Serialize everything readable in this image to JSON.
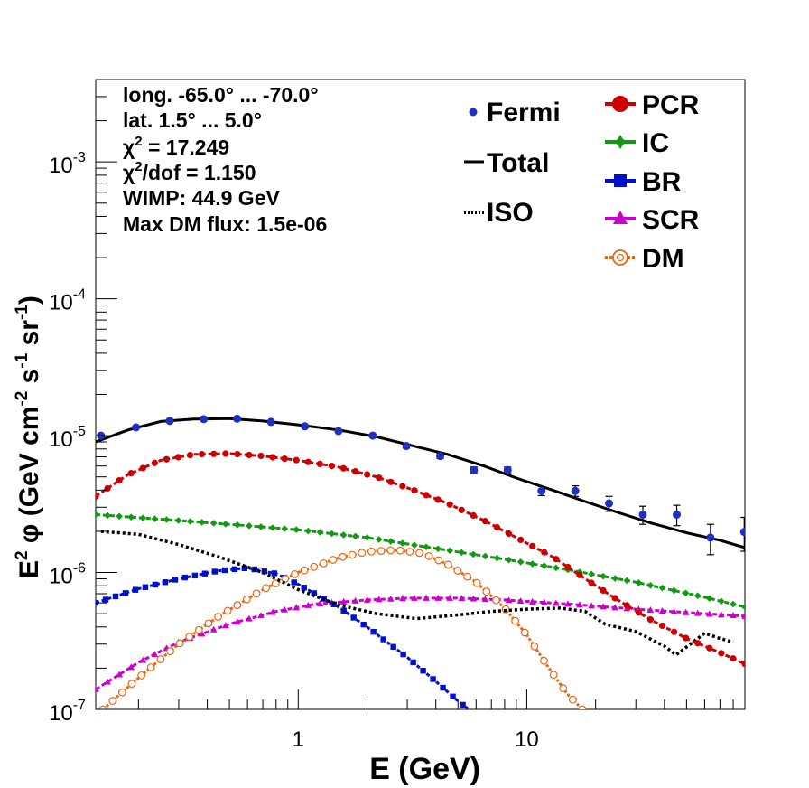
{
  "chart_data": {
    "type": "scatter",
    "xscale": "log",
    "yscale": "log",
    "xlim": [
      0.13,
      90
    ],
    "ylim": [
      1e-07,
      0.004
    ],
    "xlabel": "E (GeV)",
    "ylabel_parts": {
      "base": "E",
      "sup1": "2",
      "phi": " φ (GeV cm",
      "sup2": "-2",
      "mid": " s",
      "sup3": "-1",
      "end": " sr",
      "sup4": "-1",
      "close": ")"
    },
    "xticks": [
      {
        "value": 1,
        "label": "1"
      },
      {
        "value": 10,
        "label": "10"
      }
    ],
    "yticks": [
      {
        "value": 1e-07,
        "label": "10",
        "exp": "-7"
      },
      {
        "value": 1e-06,
        "label": "10",
        "exp": "-6"
      },
      {
        "value": 1e-05,
        "label": "10",
        "exp": "-5"
      },
      {
        "value": 0.0001,
        "label": "10",
        "exp": "-4"
      },
      {
        "value": 0.001,
        "label": "10",
        "exp": "-3"
      }
    ],
    "annotations": [
      {
        "text": "long. -65.0° ... -70.0°"
      },
      {
        "text": "lat. 1.5° ... 5.0°"
      },
      {
        "text": "χ",
        "sup": "2",
        "rest": " = 17.249"
      },
      {
        "text": "χ",
        "sup": "2",
        "rest": "/dof = 1.150"
      },
      {
        "text": "WIMP: 44.9 GeV"
      },
      {
        "text": "Max DM flux: 1.5e-06"
      }
    ],
    "legend_left": [
      {
        "key": "fermi",
        "label": "Fermi"
      },
      {
        "key": "total",
        "label": "Total"
      },
      {
        "key": "iso",
        "label": "ISO"
      }
    ],
    "legend_right": [
      {
        "key": "pcr",
        "label": "PCR"
      },
      {
        "key": "ic",
        "label": "IC"
      },
      {
        "key": "br",
        "label": "BR"
      },
      {
        "key": "scr",
        "label": "SCR"
      },
      {
        "key": "dm",
        "label": "DM"
      }
    ],
    "colors": {
      "fermi": "#1f2fc0",
      "total": "#000000",
      "iso": "#000000",
      "pcr": "#cc0000",
      "ic": "#119911",
      "br": "#0010cc",
      "scr": "#cc00cc",
      "dm": "#ee6611"
    },
    "fermi_points": [
      {
        "x": 0.137,
        "y": 1e-05,
        "err": 0
      },
      {
        "x": 0.195,
        "y": 1.15e-05,
        "err": 0
      },
      {
        "x": 0.274,
        "y": 1.28e-05,
        "err": 0
      },
      {
        "x": 0.386,
        "y": 1.32e-05,
        "err": 0
      },
      {
        "x": 0.54,
        "y": 1.33e-05,
        "err": 0
      },
      {
        "x": 0.76,
        "y": 1.26e-05,
        "err": 0
      },
      {
        "x": 1.07,
        "y": 1.17e-05,
        "err": 0
      },
      {
        "x": 1.5,
        "y": 1.08e-05,
        "err": 0
      },
      {
        "x": 2.12,
        "y": 1e-05,
        "err": 0
      },
      {
        "x": 2.97,
        "y": 8.4e-06,
        "err": 3e-07
      },
      {
        "x": 4.18,
        "y": 7.1e-06,
        "err": 3e-07
      },
      {
        "x": 5.87,
        "y": 5.6e-06,
        "err": 3e-07
      },
      {
        "x": 8.25,
        "y": 5.6e-06,
        "err": 3e-07
      },
      {
        "x": 11.6,
        "y": 3.95e-06,
        "err": 3e-07
      },
      {
        "x": 16.3,
        "y": 3.95e-06,
        "err": 3.5e-07
      },
      {
        "x": 22.9,
        "y": 3.2e-06,
        "err": 4e-07
      },
      {
        "x": 32.2,
        "y": 2.65e-06,
        "err": 4e-07
      },
      {
        "x": 45.3,
        "y": 2.65e-06,
        "err": 4.5e-07
      },
      {
        "x": 63.6,
        "y": 1.8e-06,
        "err": 4.5e-07
      },
      {
        "x": 89.4,
        "y": 1.98e-06,
        "err": 5.5e-07
      }
    ],
    "total_curve": [
      [
        0.13,
        9e-06
      ],
      [
        0.18,
        1.1e-05
      ],
      [
        0.25,
        1.27e-05
      ],
      [
        0.35,
        1.32e-05
      ],
      [
        0.5,
        1.33e-05
      ],
      [
        0.7,
        1.28e-05
      ],
      [
        1.0,
        1.2e-05
      ],
      [
        1.5,
        1.1e-05
      ],
      [
        2.2,
        9.8e-06
      ],
      [
        3.2,
        8.4e-06
      ],
      [
        4.5,
        7.3e-06
      ],
      [
        6.5,
        6e-06
      ],
      [
        9.0,
        4.9e-06
      ],
      [
        13,
        4e-06
      ],
      [
        18,
        3.3e-06
      ],
      [
        25,
        2.75e-06
      ],
      [
        35,
        2.3e-06
      ],
      [
        50,
        1.95e-06
      ],
      [
        70,
        1.72e-06
      ],
      [
        90,
        1.52e-06
      ]
    ],
    "iso_curve": [
      [
        0.137,
        2e-06
      ],
      [
        0.2,
        1.9e-06
      ],
      [
        0.3,
        1.6e-06
      ],
      [
        0.45,
        1.3e-06
      ],
      [
        0.7,
        1e-06
      ],
      [
        1.0,
        7.5e-07
      ],
      [
        1.5,
        5.8e-07
      ],
      [
        2.2,
        5e-07
      ],
      [
        3.3,
        4.6e-07
      ],
      [
        5.0,
        4.9e-07
      ],
      [
        7.0,
        5.2e-07
      ],
      [
        10,
        5.4e-07
      ],
      [
        14,
        5.5e-07
      ],
      [
        18,
        5.2e-07
      ],
      [
        22,
        4.2e-07
      ],
      [
        30,
        3.7e-07
      ],
      [
        40,
        2.9e-07
      ],
      [
        45,
        2.5e-07
      ],
      [
        52,
        3e-07
      ],
      [
        60,
        3.6e-07
      ],
      [
        70,
        3.3e-07
      ],
      [
        80,
        3.1e-07
      ]
    ],
    "pcr_curve": [
      [
        0.13,
        3.6e-06
      ],
      [
        0.18,
        5.2e-06
      ],
      [
        0.25,
        6.6e-06
      ],
      [
        0.35,
        7.3e-06
      ],
      [
        0.5,
        7.4e-06
      ],
      [
        0.7,
        7.1e-06
      ],
      [
        1.0,
        6.6e-06
      ],
      [
        1.5,
        5.9e-06
      ],
      [
        2.2,
        5e-06
      ],
      [
        3.2,
        4e-06
      ],
      [
        4.5,
        3.2e-06
      ],
      [
        6.5,
        2.4e-06
      ],
      [
        9.0,
        1.8e-06
      ],
      [
        13,
        1.3e-06
      ],
      [
        18,
        9e-07
      ],
      [
        25,
        6.3e-07
      ],
      [
        35,
        4.5e-07
      ],
      [
        50,
        3.3e-07
      ],
      [
        70,
        2.6e-07
      ],
      [
        90,
        2.15e-07
      ]
    ],
    "ic_curve": [
      [
        0.13,
        2.65e-06
      ],
      [
        0.3,
        2.4e-06
      ],
      [
        0.6,
        2.2e-06
      ],
      [
        1.0,
        2.05e-06
      ],
      [
        2.0,
        1.8e-06
      ],
      [
        4.0,
        1.5e-06
      ],
      [
        8.0,
        1.25e-06
      ],
      [
        15,
        1.05e-06
      ],
      [
        30,
        8.5e-07
      ],
      [
        60,
        6.6e-07
      ],
      [
        90,
        5.6e-07
      ]
    ],
    "br_curve": [
      [
        0.13,
        6e-07
      ],
      [
        0.2,
        7.6e-07
      ],
      [
        0.3,
        9e-07
      ],
      [
        0.45,
        1.03e-06
      ],
      [
        0.6,
        1.08e-06
      ],
      [
        0.8,
        9.8e-07
      ],
      [
        1.0,
        8.2e-07
      ],
      [
        1.5,
        5.6e-07
      ],
      [
        2.0,
        4e-07
      ],
      [
        3.0,
        2.4e-07
      ],
      [
        4.0,
        1.6e-07
      ],
      [
        5.0,
        1.15e-07
      ],
      [
        5.8,
        9.5e-08
      ]
    ],
    "scr_curve": [
      [
        0.13,
        1.4e-07
      ],
      [
        0.2,
        2.2e-07
      ],
      [
        0.3,
        3.1e-07
      ],
      [
        0.5,
        4.2e-07
      ],
      [
        0.8,
        5.2e-07
      ],
      [
        1.2,
        5.9e-07
      ],
      [
        2.0,
        6.3e-07
      ],
      [
        3.0,
        6.5e-07
      ],
      [
        5.0,
        6.5e-07
      ],
      [
        8.0,
        6.3e-07
      ],
      [
        15,
        5.9e-07
      ],
      [
        30,
        5.4e-07
      ],
      [
        60,
        5e-07
      ],
      [
        90,
        4.8e-07
      ]
    ],
    "dm_curve": [
      [
        0.14,
        1e-07
      ],
      [
        0.2,
        1.7e-07
      ],
      [
        0.3,
        3e-07
      ],
      [
        0.45,
        4.8e-07
      ],
      [
        0.7,
        7.5e-07
      ],
      [
        1.0,
        1e-06
      ],
      [
        1.5,
        1.28e-06
      ],
      [
        2.0,
        1.42e-06
      ],
      [
        2.7,
        1.46e-06
      ],
      [
        3.5,
        1.38e-06
      ],
      [
        4.5,
        1.15e-06
      ],
      [
        6.0,
        8.5e-07
      ],
      [
        8.0,
        5.5e-07
      ],
      [
        10,
        3.5e-07
      ],
      [
        12.5,
        2e-07
      ],
      [
        15,
        1.3e-07
      ],
      [
        17.5,
        1e-07
      ]
    ]
  }
}
